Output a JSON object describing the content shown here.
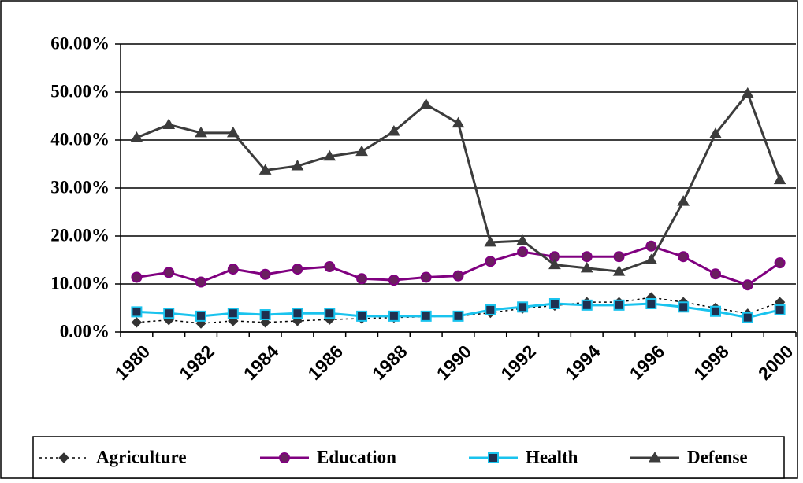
{
  "chart_data": {
    "type": "line",
    "categories": [
      "1980",
      null,
      "1982",
      null,
      "1984",
      null,
      "1986",
      null,
      "1988",
      null,
      "1990",
      null,
      "1992",
      null,
      "1994",
      null,
      "1996",
      null,
      "1998",
      null,
      "2000"
    ],
    "ylim": [
      0,
      60
    ],
    "yticks": [
      {
        "value": 0,
        "label": "0.00%"
      },
      {
        "value": 10,
        "label": "10.00%"
      },
      {
        "value": 20,
        "label": "20.00%"
      },
      {
        "value": 30,
        "label": "30.00%"
      },
      {
        "value": 40,
        "label": "40.00%"
      },
      {
        "value": 50,
        "label": "50.00%"
      },
      {
        "value": 60,
        "label": "60.00%"
      }
    ],
    "grid": true,
    "legend": "bottom",
    "series": [
      {
        "name": "Agriculture",
        "color": "#000000",
        "marker": "diamond",
        "dash": "dotted",
        "values": [
          2.0,
          2.5,
          1.8,
          2.3,
          2.0,
          2.3,
          2.6,
          2.8,
          3.0,
          3.2,
          3.3,
          4.0,
          4.9,
          5.5,
          6.2,
          6.2,
          7.2,
          6.2,
          5.0,
          3.8,
          6.2
        ]
      },
      {
        "name": "Education",
        "color": "#800080",
        "marker": "circle",
        "values": [
          11.4,
          12.4,
          10.4,
          13.1,
          12.0,
          13.1,
          13.6,
          11.1,
          10.8,
          11.4,
          11.7,
          14.7,
          16.7,
          15.7,
          15.7,
          15.7,
          17.9,
          15.7,
          12.1,
          9.8,
          14.4
        ]
      },
      {
        "name": "Health",
        "color": "#19c3ee",
        "marker": "square",
        "values": [
          4.2,
          3.9,
          3.3,
          3.9,
          3.6,
          3.9,
          3.9,
          3.3,
          3.3,
          3.3,
          3.3,
          4.6,
          5.2,
          5.9,
          5.6,
          5.6,
          5.9,
          5.2,
          4.3,
          3.0,
          4.6
        ]
      },
      {
        "name": "Defense",
        "color": "#3c3c3c",
        "marker": "triangle",
        "values": [
          40.5,
          43.2,
          41.5,
          41.5,
          33.7,
          34.6,
          36.6,
          37.6,
          41.8,
          47.4,
          43.5,
          18.7,
          19.0,
          14.0,
          13.3,
          12.6,
          15.0,
          27.2,
          41.3,
          49.7,
          31.7
        ]
      }
    ]
  }
}
